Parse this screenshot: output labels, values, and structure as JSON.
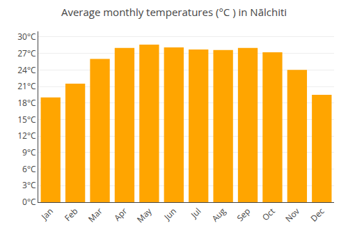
{
  "chart_data": {
    "type": "bar",
    "title": "Average monthly temperatures (°C ) in Nālchiti",
    "categories": [
      "Jan",
      "Feb",
      "Mar",
      "Apr",
      "May",
      "Jun",
      "Jul",
      "Aug",
      "Sep",
      "Oct",
      "Nov",
      "Dec"
    ],
    "values": [
      19.0,
      21.5,
      26.0,
      28.0,
      28.6,
      28.1,
      27.7,
      27.6,
      28.0,
      27.2,
      24.0,
      19.5
    ],
    "color": "#FFA500",
    "ylim": [
      0,
      31
    ],
    "yticks": [
      {
        "value": 0,
        "label": "0°C"
      },
      {
        "value": 3,
        "label": "3°C"
      },
      {
        "value": 6,
        "label": "6°C"
      },
      {
        "value": 9,
        "label": "9°C"
      },
      {
        "value": 12,
        "label": "12°C"
      },
      {
        "value": 15,
        "label": "15°C"
      },
      {
        "value": 18,
        "label": "18°C"
      },
      {
        "value": 21,
        "label": "21°C"
      },
      {
        "value": 24,
        "label": "24°C"
      },
      {
        "value": 27,
        "label": "27°C"
      },
      {
        "value": 30,
        "label": "30°C"
      }
    ],
    "grid": true
  }
}
